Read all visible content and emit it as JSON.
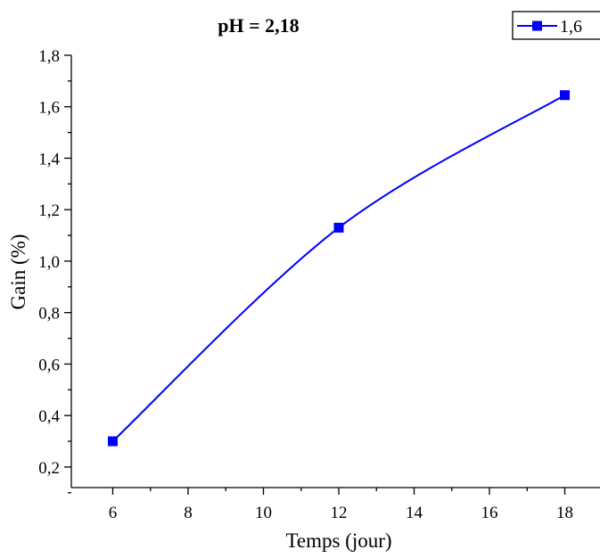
{
  "chart_data": {
    "type": "line",
    "title": "pH = 2,18",
    "xlabel": "Temps (jour)",
    "ylabel": "Gain (%)",
    "xlim": [
      4.9,
      19.1
    ],
    "ylim": [
      0.12,
      1.8
    ],
    "x_ticks": [
      "6",
      "8",
      "10",
      "12",
      "14",
      "16",
      "18"
    ],
    "y_ticks": [
      "0,2",
      "0,4",
      "0,6",
      "0,8",
      "1,0",
      "1,2",
      "1,4",
      "1,6",
      "1,8"
    ],
    "legend_position": "top-right",
    "colors": {
      "series": "#0000ff"
    },
    "series": [
      {
        "name": "1,6",
        "x": [
          6,
          12,
          18
        ],
        "y": [
          0.3,
          1.13,
          1.645
        ],
        "marker": "square",
        "smooth": true
      }
    ]
  }
}
